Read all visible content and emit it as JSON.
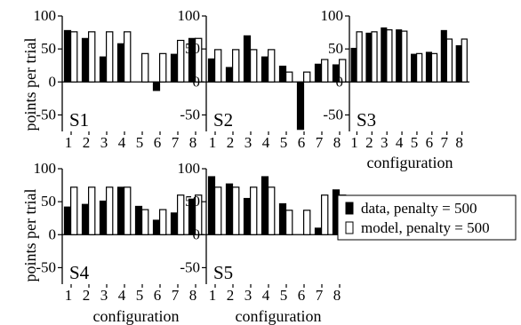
{
  "chart_data": {
    "type": "bar",
    "ylim": [
      -75,
      100
    ],
    "yticks": [
      -50,
      0,
      50,
      100
    ],
    "legend": {
      "position": "right",
      "entries": [
        {
          "name": "data, penalty = 500",
          "color": "#000000"
        },
        {
          "name": "model, penalty = 500",
          "color": "#ffffff"
        }
      ]
    },
    "panels": [
      {
        "label": "S1",
        "categories": [
          "1",
          "2",
          "3",
          "4",
          "5",
          "6",
          "7",
          "8"
        ],
        "ylabel": "points per trial",
        "xlabel": "",
        "series": [
          {
            "name": "data, penalty = 500",
            "values": [
              78,
              66,
              38,
              58,
              0,
              -13,
              42,
              66
            ]
          },
          {
            "name": "model, penalty = 500",
            "values": [
              76,
              76,
              76,
              76,
              43,
              43,
              63,
              66
            ]
          }
        ]
      },
      {
        "label": "S2",
        "categories": [
          "1",
          "2",
          "3",
          "4",
          "5",
          "6",
          "7",
          "8"
        ],
        "ylabel": "",
        "xlabel": "",
        "series": [
          {
            "name": "data, penalty = 500",
            "values": [
              35,
              22,
              70,
              38,
              24,
              -72,
              27,
              26
            ]
          },
          {
            "name": "model, penalty = 500",
            "values": [
              49,
              49,
              49,
              49,
              15,
              15,
              34,
              34
            ]
          }
        ]
      },
      {
        "label": "S3",
        "categories": [
          "1",
          "2",
          "3",
          "4",
          "5",
          "6",
          "7",
          "8"
        ],
        "ylabel": "",
        "xlabel": "configuration",
        "series": [
          {
            "name": "data, penalty = 500",
            "values": [
              51,
              74,
              82,
              79,
              42,
              45,
              78,
              55
            ]
          },
          {
            "name": "model, penalty = 500",
            "values": [
              76,
              76,
              79,
              77,
              43,
              43,
              65,
              65
            ]
          }
        ]
      },
      {
        "label": "S4",
        "categories": [
          "1",
          "2",
          "3",
          "4",
          "5",
          "6",
          "7",
          "8"
        ],
        "ylabel": "points per trial",
        "xlabel": "configuration",
        "series": [
          {
            "name": "data, penalty = 500",
            "values": [
              42,
              46,
              51,
              72,
              43,
              22,
              33,
              54
            ]
          },
          {
            "name": "model, penalty = 500",
            "values": [
              72,
              72,
              72,
              72,
              38,
              38,
              60,
              60
            ]
          }
        ]
      },
      {
        "label": "S5",
        "categories": [
          "1",
          "2",
          "3",
          "4",
          "5",
          "6",
          "7",
          "8"
        ],
        "ylabel": "",
        "xlabel": "configuration",
        "series": [
          {
            "name": "data, penalty = 500",
            "values": [
              88,
              77,
              55,
              88,
              47,
              0,
              10,
              68
            ]
          },
          {
            "name": "model, penalty = 500",
            "values": [
              72,
              72,
              72,
              72,
              37,
              37,
              60,
              60
            ]
          }
        ]
      }
    ]
  }
}
